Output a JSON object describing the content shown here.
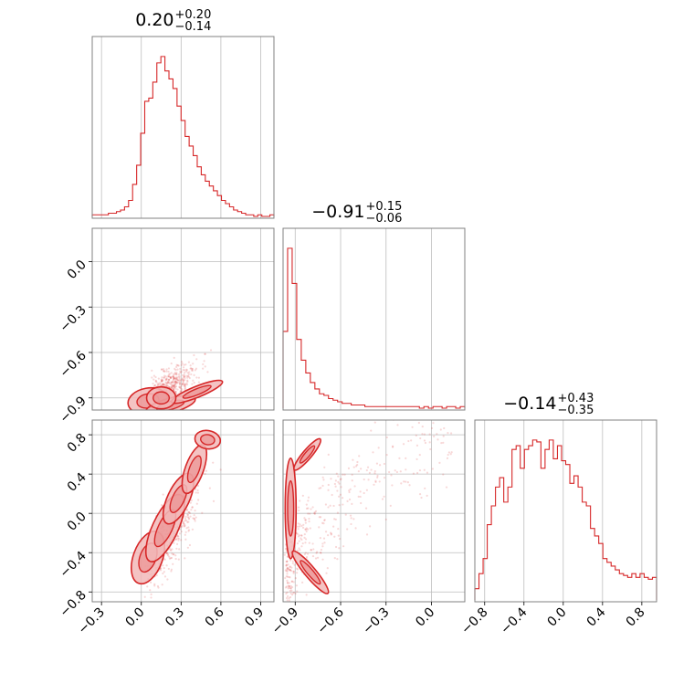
{
  "chart_data": {
    "type": "corner",
    "color": "#d62728",
    "fill_color": "#f2b8b8",
    "grid": true,
    "parameters": [
      {
        "title_main": "0.20",
        "title_plus": "+0.20",
        "title_minus": "−0.14",
        "range": [
          -0.37,
          1.0
        ],
        "ticks": [
          -0.3,
          0.0,
          0.3,
          0.6,
          0.9
        ],
        "tick_labels": [
          "−0.3",
          "0.0",
          "0.3",
          "0.6",
          "0.9"
        ],
        "hist": [
          1,
          1,
          1,
          1,
          2,
          2,
          3,
          4,
          6,
          10,
          20,
          32,
          52,
          72,
          74,
          84,
          96,
          100,
          91,
          86,
          80,
          69,
          60,
          50,
          44,
          38,
          31,
          26,
          22,
          19,
          16,
          13,
          10,
          8,
          6,
          4,
          3,
          2,
          1,
          1,
          0,
          1,
          0,
          0,
          1
        ]
      },
      {
        "title_main": "−0.91",
        "title_plus": "+0.15",
        "title_minus": "−0.06",
        "range": [
          -0.98,
          0.22
        ],
        "ticks": [
          -0.9,
          -0.6,
          -0.3,
          0.0
        ],
        "tick_labels": [
          "−0.9",
          "−0.6",
          "−0.3",
          "0.0"
        ],
        "y_tick_labels": [
          "0.0",
          "−0.3",
          "−0.6",
          "−0.9"
        ],
        "hist": [
          48,
          100,
          78,
          43,
          30,
          22,
          16,
          12,
          9,
          8,
          6,
          5,
          4,
          3,
          3,
          2,
          2,
          2,
          1,
          1,
          1,
          1,
          1,
          1,
          1,
          1,
          1,
          1,
          1,
          1,
          0,
          1,
          0,
          1,
          1,
          0,
          1,
          1,
          0,
          1
        ]
      },
      {
        "title_main": "−0.14",
        "title_plus": "+0.43",
        "title_minus": "−0.35",
        "range": [
          -0.9,
          0.95
        ],
        "ticks": [
          -0.8,
          -0.4,
          0.0,
          0.4,
          0.8
        ],
        "tick_labels": [
          "−0.8",
          "−0.4",
          "0.0",
          "0.4",
          "0.8"
        ],
        "y_tick_labels": [
          "0.8",
          "0.4",
          "0.0",
          "−0.4",
          "−0.8"
        ],
        "hist": [
          6,
          14,
          22,
          40,
          50,
          60,
          65,
          52,
          60,
          80,
          82,
          70,
          80,
          82,
          85,
          84,
          70,
          80,
          85,
          75,
          82,
          74,
          72,
          62,
          66,
          60,
          52,
          50,
          38,
          34,
          30,
          22,
          20,
          18,
          16,
          14,
          13,
          12,
          14,
          12,
          14,
          12,
          11,
          12
        ]
      }
    ]
  }
}
